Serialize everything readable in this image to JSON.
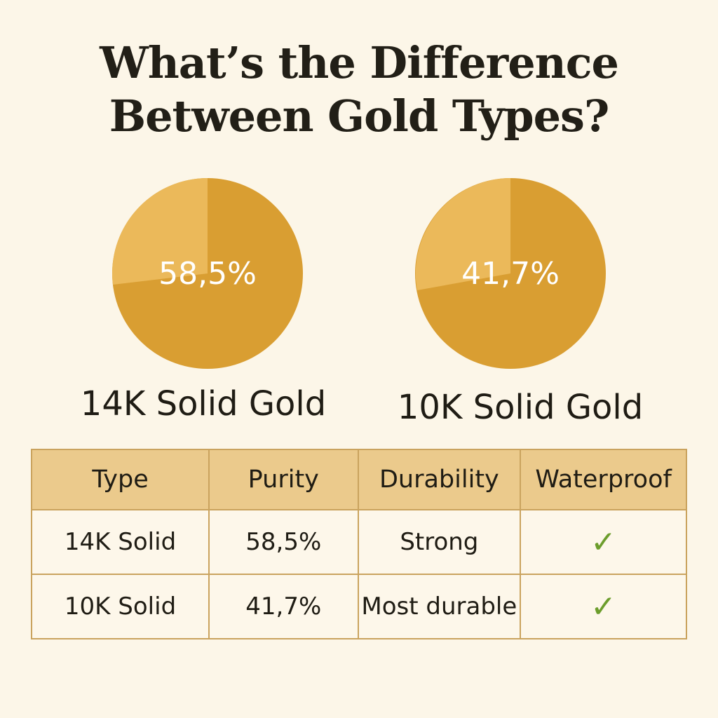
{
  "title": {
    "line1": "What’s the Difference",
    "line2": "Between Gold Types?"
  },
  "chart_data": [
    {
      "type": "pie",
      "label": "58,5%",
      "value": 58.5,
      "caption": "14K Solid Gold",
      "colors": {
        "main": "#d99e32",
        "rest": "#ebb95a"
      }
    },
    {
      "type": "pie",
      "label": "41,7%",
      "value": 41.7,
      "caption": "10K Solid Gold",
      "colors": {
        "main": "#d99e32",
        "rest": "#ebb95a"
      }
    }
  ],
  "table": {
    "headers": [
      "Type",
      "Purity",
      "Durability",
      "Waterproof"
    ],
    "rows": [
      {
        "type": "14K Solid",
        "purity": "58,5%",
        "durability": "Strong",
        "waterproof": "✓"
      },
      {
        "type": "10K Solid",
        "purity": "41,7%",
        "durability": "Most durable",
        "waterproof": "✓"
      }
    ]
  },
  "colors": {
    "background": "#fcf6e8",
    "header": "#ebca8c",
    "border": "#caa35e",
    "check": "#6c9d2c"
  }
}
